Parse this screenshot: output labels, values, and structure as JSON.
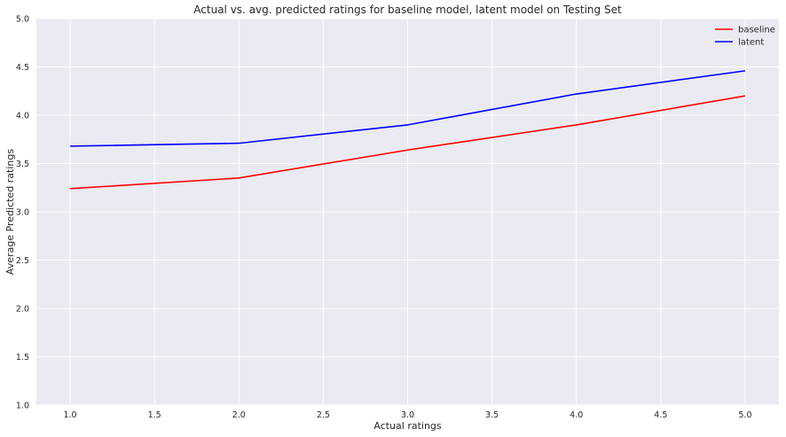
{
  "chart_data": {
    "type": "line",
    "title": "Actual vs. avg. predicted ratings for baseline model, latent model on Testing Set",
    "xlabel": "Actual ratings",
    "ylabel": "Average Predicted ratings",
    "xlim": [
      0.8,
      5.2
    ],
    "ylim": [
      1.0,
      5.0
    ],
    "xticks": [
      "1.0",
      "1.5",
      "2.0",
      "2.5",
      "3.0",
      "3.5",
      "4.0",
      "4.5",
      "5.0"
    ],
    "yticks": [
      "1.0",
      "1.5",
      "2.0",
      "2.5",
      "3.0",
      "3.5",
      "4.0",
      "4.5",
      "5.0"
    ],
    "grid": true,
    "legend_position": "top-right",
    "x": [
      1,
      2,
      3,
      4,
      5
    ],
    "series": [
      {
        "name": "baseline",
        "color": "#ff0000",
        "values": [
          3.24,
          3.35,
          3.64,
          3.9,
          4.2
        ]
      },
      {
        "name": "latent",
        "color": "#0000ff",
        "values": [
          3.68,
          3.71,
          3.9,
          4.22,
          4.46
        ]
      }
    ],
    "background_color": "#eaeaf2",
    "grid_color": "#ffffff"
  }
}
